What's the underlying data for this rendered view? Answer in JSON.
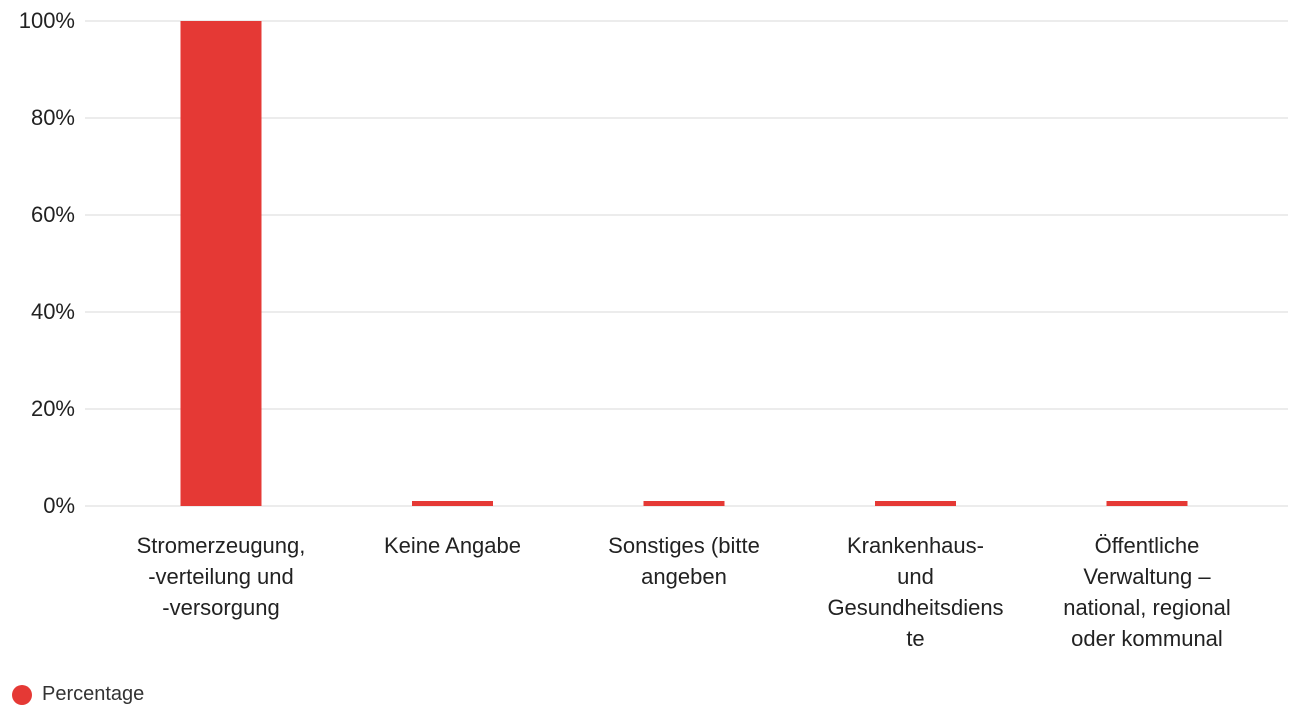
{
  "chart_data": {
    "type": "bar",
    "categories": [
      [
        "Stromerzeugung,",
        "-verteilung und",
        "-versorgung"
      ],
      [
        "Keine Angabe"
      ],
      [
        "Sonstiges (bitte",
        "angeben"
      ],
      [
        "Krankenhaus-",
        "und",
        "Gesundheitsdiens",
        "te"
      ],
      [
        "Öffentliche",
        "Verwaltung –",
        "national, regional",
        "oder kommunal"
      ]
    ],
    "series": [
      {
        "name": "Percentage",
        "values": [
          100,
          0,
          0,
          0,
          0
        ],
        "color": "#e53935"
      }
    ],
    "ylim": [
      0,
      100
    ],
    "yticks": [
      "0%",
      "20%",
      "40%",
      "60%",
      "80%",
      "100%"
    ],
    "grid": true,
    "legend_position": "bottom-left"
  }
}
